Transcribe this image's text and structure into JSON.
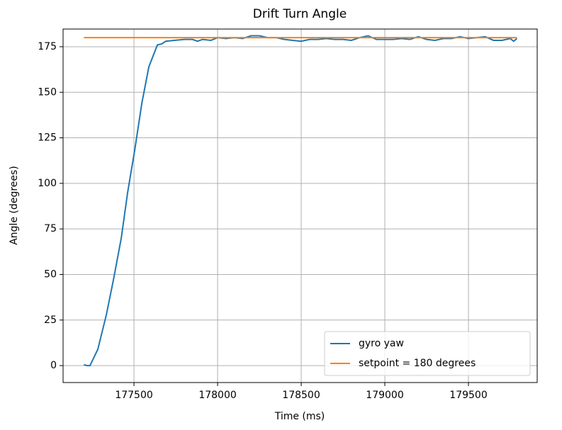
{
  "chart_data": {
    "type": "line",
    "title": "Drift Turn Angle",
    "x_label": "Time (ms)",
    "y_label": "Angle (degrees)",
    "series": [
      {
        "name": "gyro yaw",
        "color": "#1f77b4",
        "x": [
          177200,
          177220,
          177237,
          177284,
          177335,
          177377,
          177424,
          177462,
          177504,
          177547,
          177589,
          177640,
          177665,
          177690,
          177740,
          177800,
          177850,
          177880,
          177910,
          177960,
          178000,
          178050,
          178100,
          178150,
          178200,
          178250,
          178300,
          178350,
          178400,
          178450,
          178500,
          178550,
          178600,
          178650,
          178700,
          178750,
          178800,
          178850,
          178900,
          178950,
          179000,
          179050,
          179100,
          179150,
          179200,
          179250,
          179300,
          179350,
          179400,
          179450,
          179500,
          179550,
          179600,
          179650,
          179700,
          179750,
          179770,
          179790
        ],
        "values": [
          0.5,
          0,
          0,
          9,
          28,
          47,
          70,
          95,
          118,
          144,
          164,
          176,
          176.5,
          178,
          178.5,
          179,
          179,
          178,
          179,
          178.5,
          180,
          179.5,
          180,
          179.5,
          181,
          181,
          180,
          180,
          179,
          178.5,
          178,
          179,
          179,
          179.5,
          179,
          179,
          178.5,
          180,
          181,
          179,
          179,
          179,
          179.5,
          179,
          180.5,
          179,
          178.5,
          179.5,
          179.5,
          180.5,
          179.5,
          180,
          180.5,
          178.5,
          178.5,
          179.5,
          178,
          179.5
        ]
      },
      {
        "name": "setpoint = 180 degrees",
        "color": "#ff7f0e",
        "x": [
          177200,
          179790
        ],
        "values": [
          180,
          180
        ]
      }
    ],
    "xlim": [
      177076,
      179911
    ],
    "xticks": [
      177500,
      178000,
      178500,
      179000,
      179500
    ],
    "ylim": [
      -9.3,
      184.7
    ],
    "yticks": [
      0,
      25,
      50,
      75,
      100,
      125,
      150,
      175
    ],
    "grid": true,
    "legend": "lower right"
  }
}
